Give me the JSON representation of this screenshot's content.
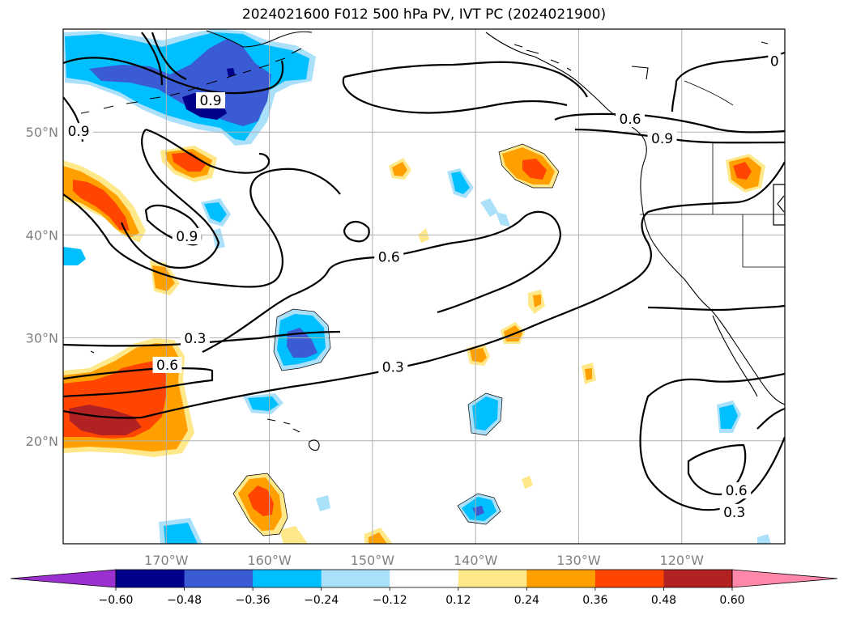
{
  "title": "2024021600 F012 500 hPa PV, IVT PC (2024021900)",
  "map": {
    "projection": "equirectangular",
    "lon_range": [
      -180,
      -110
    ],
    "lat_range": [
      10,
      60
    ],
    "lon_ticks": [
      {
        "value": -170,
        "label": "170°W"
      },
      {
        "value": -160,
        "label": "160°W"
      },
      {
        "value": -150,
        "label": "150°W"
      },
      {
        "value": -140,
        "label": "140°W"
      },
      {
        "value": -130,
        "label": "130°W"
      },
      {
        "value": -120,
        "label": "120°W"
      }
    ],
    "lat_ticks": [
      {
        "value": 20,
        "label": "20°N"
      },
      {
        "value": 30,
        "label": "30°N"
      },
      {
        "value": 40,
        "label": "40°N"
      },
      {
        "value": 50,
        "label": "50°N"
      }
    ],
    "grid": true,
    "tick_label_color": "#808080",
    "contour_labels": [
      {
        "text": "0.9",
        "lon": -165.7,
        "lat": 53.0
      },
      {
        "text": "0.9",
        "lon": -178.5,
        "lat": 50.0
      },
      {
        "text": "0.9",
        "lon": -168.0,
        "lat": 39.8
      },
      {
        "text": "0.6",
        "lon": -148.4,
        "lat": 37.8
      },
      {
        "text": "0.3",
        "lon": -167.2,
        "lat": 29.9
      },
      {
        "text": "0.6",
        "lon": -169.9,
        "lat": 27.3
      },
      {
        "text": "0.3",
        "lon": -148.0,
        "lat": 27.1
      },
      {
        "text": "0.6",
        "lon": -125.0,
        "lat": 51.2
      },
      {
        "text": "0.9",
        "lon": -121.9,
        "lat": 49.3
      },
      {
        "text": "0",
        "lon": -111.0,
        "lat": 56.8
      },
      {
        "text": "0.6",
        "lon": -114.7,
        "lat": 15.1
      },
      {
        "text": "0.3",
        "lon": -114.9,
        "lat": 13.0
      }
    ]
  },
  "colorbar": {
    "extend": "both",
    "levels": [
      -0.6,
      -0.48,
      -0.36,
      -0.24,
      -0.12,
      0.12,
      0.24,
      0.36,
      0.48,
      0.6
    ],
    "tick_labels": [
      "−0.60",
      "−0.48",
      "−0.36",
      "−0.24",
      "−0.12",
      "0.12",
      "0.24",
      "0.36",
      "0.48",
      "0.60"
    ],
    "colors": [
      "#9b30d0",
      "#00008b",
      "#3a5bd3",
      "#00bfff",
      "#abe0fa",
      "#ffffff",
      "#ffe88a",
      "#ffa000",
      "#ff4500",
      "#b22222",
      "#ff88aa"
    ]
  },
  "colors": {
    "contour": "#000000",
    "coast": "#000000",
    "grid": "#b0b0b0"
  }
}
